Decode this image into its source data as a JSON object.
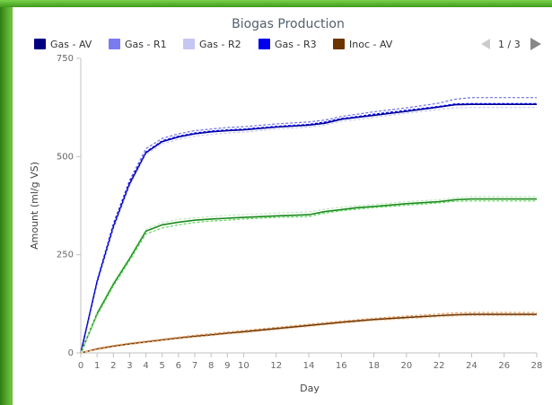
{
  "chart_data": {
    "type": "line",
    "title": "Biogas Production",
    "xlabel": "Day",
    "ylabel": "Amount (ml/g VS)",
    "ylim": [
      0,
      750
    ],
    "xlim": [
      0,
      28
    ],
    "yticks": [
      0,
      250,
      500,
      750
    ],
    "xticks": [
      0,
      1,
      2,
      3,
      4,
      5,
      6,
      7,
      8,
      9,
      10,
      12,
      14,
      16,
      18,
      20,
      22,
      24,
      26,
      28
    ],
    "grid": false,
    "legend_position": "top",
    "legend_page": "1 / 3",
    "series": [
      {
        "name": "Gas - AV",
        "color": "#00008b",
        "dash": false,
        "legend_swatch": "#000080",
        "x": [
          0,
          1,
          2,
          3,
          4,
          5,
          6,
          7,
          8,
          9,
          10,
          12,
          14,
          15,
          16,
          17,
          18,
          20,
          22,
          23,
          24,
          26,
          28
        ],
        "y": [
          0,
          180,
          320,
          430,
          510,
          538,
          550,
          558,
          563,
          566,
          568,
          575,
          580,
          585,
          595,
          600,
          605,
          615,
          626,
          632,
          633,
          633,
          633
        ]
      },
      {
        "name": "Gas - R1",
        "color": "#7070e0",
        "dash": true,
        "legend_swatch": "#7b7bf0",
        "x": [
          0,
          1,
          2,
          3,
          4,
          5,
          6,
          7,
          8,
          9,
          10,
          12,
          14,
          15,
          16,
          17,
          18,
          20,
          22,
          23,
          24,
          26,
          28
        ],
        "y": [
          0,
          185,
          330,
          440,
          520,
          546,
          558,
          566,
          570,
          574,
          576,
          583,
          588,
          593,
          602,
          608,
          614,
          624,
          636,
          646,
          650,
          650,
          650
        ]
      },
      {
        "name": "Gas - R2",
        "color": "#c8c8f0",
        "dash": true,
        "legend_swatch": "#c6c6f4",
        "x": [
          0,
          1,
          2,
          3,
          4,
          5,
          6,
          7,
          8,
          9,
          10,
          12,
          14,
          15,
          16,
          17,
          18,
          20,
          22,
          23,
          24,
          26,
          28
        ],
        "y": [
          0,
          175,
          315,
          425,
          505,
          532,
          544,
          552,
          556,
          560,
          562,
          570,
          575,
          580,
          590,
          594,
          600,
          610,
          620,
          624,
          625,
          625,
          625
        ]
      },
      {
        "name": "Gas - R3",
        "color": "#0000ff",
        "dash": true,
        "legend_swatch": "#0000ee",
        "x": [
          0,
          1,
          2,
          3,
          4,
          5,
          6,
          7,
          8,
          9,
          10,
          12,
          14,
          15,
          16,
          17,
          18,
          20,
          22,
          23,
          24,
          26,
          28
        ],
        "y": [
          0,
          182,
          325,
          435,
          512,
          540,
          552,
          560,
          565,
          568,
          570,
          577,
          582,
          588,
          597,
          602,
          608,
          618,
          628,
          634,
          635,
          635,
          635
        ]
      },
      {
        "name": "Inoc - AV",
        "color": "#6b3300",
        "dash": false,
        "legend_swatch": "#6b3300",
        "x": [
          0,
          1,
          2,
          3,
          4,
          5,
          6,
          7,
          8,
          9,
          10,
          12,
          14,
          16,
          18,
          20,
          22,
          23,
          24,
          26,
          28
        ],
        "y": [
          0,
          10,
          17,
          23,
          28,
          33,
          38,
          42,
          46,
          50,
          54,
          62,
          70,
          78,
          85,
          90,
          95,
          97,
          98,
          98,
          98
        ]
      },
      {
        "name": "",
        "color": "#1a8a1a",
        "dash": false,
        "x": [
          0,
          1,
          2,
          3,
          4,
          5,
          6,
          7,
          8,
          9,
          10,
          12,
          14,
          15,
          16,
          17,
          18,
          20,
          22,
          23,
          24,
          26,
          28
        ],
        "y": [
          0,
          100,
          175,
          240,
          310,
          326,
          333,
          338,
          341,
          343,
          345,
          349,
          352,
          360,
          365,
          370,
          373,
          380,
          385,
          390,
          392,
          392,
          392
        ]
      },
      {
        "name": "",
        "color": "#5ed65e",
        "dash": true,
        "x": [
          0,
          1,
          2,
          3,
          4,
          5,
          6,
          7,
          8,
          9,
          10,
          12,
          14,
          15,
          16,
          17,
          18,
          20,
          22,
          23,
          24,
          26,
          28
        ],
        "y": [
          0,
          95,
          170,
          235,
          303,
          318,
          326,
          332,
          336,
          338,
          341,
          345,
          347,
          356,
          362,
          366,
          370,
          376,
          382,
          386,
          387,
          387,
          387
        ]
      },
      {
        "name": "",
        "color": "#bde8bd",
        "dash": true,
        "x": [
          0,
          1,
          2,
          3,
          4,
          5,
          6,
          7,
          8,
          9,
          10,
          12,
          14,
          15,
          16,
          17,
          18,
          20,
          22,
          23,
          24,
          26,
          28
        ],
        "y": [
          0,
          105,
          180,
          245,
          315,
          332,
          340,
          344,
          347,
          350,
          352,
          356,
          359,
          366,
          371,
          375,
          378,
          385,
          390,
          395,
          398,
          398,
          398
        ]
      },
      {
        "name": "",
        "color": "#e69a5a",
        "dash": true,
        "x": [
          0,
          1,
          2,
          3,
          4,
          5,
          6,
          7,
          8,
          9,
          10,
          12,
          14,
          16,
          18,
          20,
          22,
          23,
          24,
          26,
          28
        ],
        "y": [
          0,
          12,
          19,
          25,
          30,
          35,
          40,
          45,
          49,
          53,
          57,
          65,
          73,
          81,
          88,
          94,
          99,
          102,
          103,
          103,
          103
        ]
      },
      {
        "name": "",
        "color": "#f2c9a0",
        "dash": true,
        "x": [
          0,
          1,
          2,
          3,
          4,
          5,
          6,
          7,
          8,
          9,
          10,
          12,
          14,
          16,
          18,
          20,
          22,
          23,
          24,
          26,
          28
        ],
        "y": [
          0,
          8,
          15,
          21,
          26,
          31,
          36,
          40,
          44,
          48,
          51,
          59,
          67,
          75,
          82,
          87,
          92,
          94,
          95,
          95,
          95
        ]
      }
    ]
  }
}
